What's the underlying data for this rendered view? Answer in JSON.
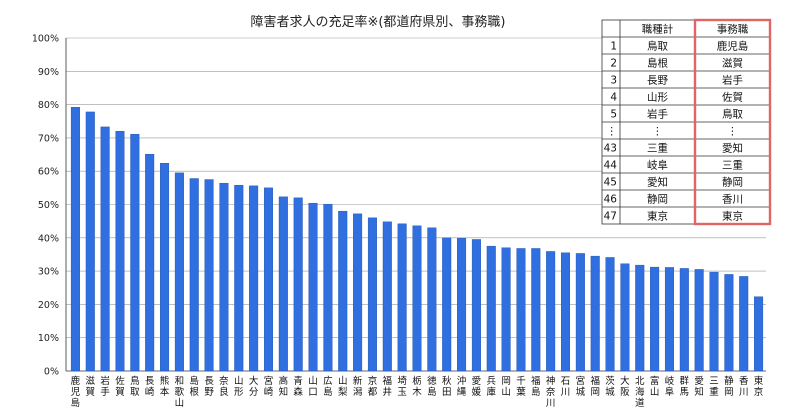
{
  "chart_data": {
    "type": "bar",
    "title": "障害者求人の充足率※(都道府県別、事務職)",
    "ylim": [
      0,
      100
    ],
    "yticks": [
      "0%",
      "10%",
      "20%",
      "30%",
      "40%",
      "50%",
      "60%",
      "70%",
      "80%",
      "90%",
      "100%"
    ],
    "grid": true,
    "categories": [
      "鹿児島",
      "滋賀",
      "岩手",
      "佐賀",
      "鳥取",
      "長崎",
      "熊本",
      "和歌山",
      "島根",
      "長野",
      "奈良",
      "山形",
      "大分",
      "宮崎",
      "高知",
      "青森",
      "山口",
      "広島",
      "山梨",
      "新潟",
      "京都",
      "福井",
      "埼玉",
      "栃木",
      "徳島",
      "秋田",
      "沖縄",
      "愛媛",
      "兵庫",
      "岡山",
      "千葉",
      "福島",
      "神奈川",
      "石川",
      "宮城",
      "福岡",
      "茨城",
      "大阪",
      "北海道",
      "富山",
      "岐阜",
      "群馬",
      "愛知",
      "三重",
      "静岡",
      "香川",
      "東京"
    ],
    "values": [
      79.2,
      77.8,
      73.3,
      72.0,
      71.1,
      65.1,
      62.4,
      59.5,
      57.8,
      57.5,
      56.4,
      55.8,
      55.6,
      55.0,
      52.3,
      52.0,
      50.4,
      50.1,
      48.0,
      47.2,
      46.0,
      44.8,
      44.2,
      43.6,
      43.0,
      40.0,
      39.9,
      39.5,
      37.5,
      37.0,
      36.8,
      36.8,
      35.9,
      35.5,
      35.3,
      34.5,
      34.1,
      32.2,
      31.8,
      31.2,
      31.1,
      30.8,
      30.5,
      29.7,
      29.0,
      28.4,
      22.3
    ]
  },
  "ranking_table": {
    "headers": [
      "",
      "職種計",
      "事務職"
    ],
    "rows": [
      [
        "1",
        "鳥取",
        "鹿児島"
      ],
      [
        "2",
        "島根",
        "滋賀"
      ],
      [
        "3",
        "長野",
        "岩手"
      ],
      [
        "4",
        "山形",
        "佐賀"
      ],
      [
        "5",
        "岩手",
        "鳥取"
      ],
      [
        "⋮",
        "⋮",
        "⋮"
      ],
      [
        "43",
        "三重",
        "愛知"
      ],
      [
        "44",
        "岐阜",
        "三重"
      ],
      [
        "45",
        "愛知",
        "静岡"
      ],
      [
        "46",
        "静岡",
        "香川"
      ],
      [
        "47",
        "東京",
        "東京"
      ]
    ],
    "highlight_color": "#e06666"
  },
  "colors": {
    "bar": "#2f6fe0",
    "highlight": "#e06666"
  }
}
